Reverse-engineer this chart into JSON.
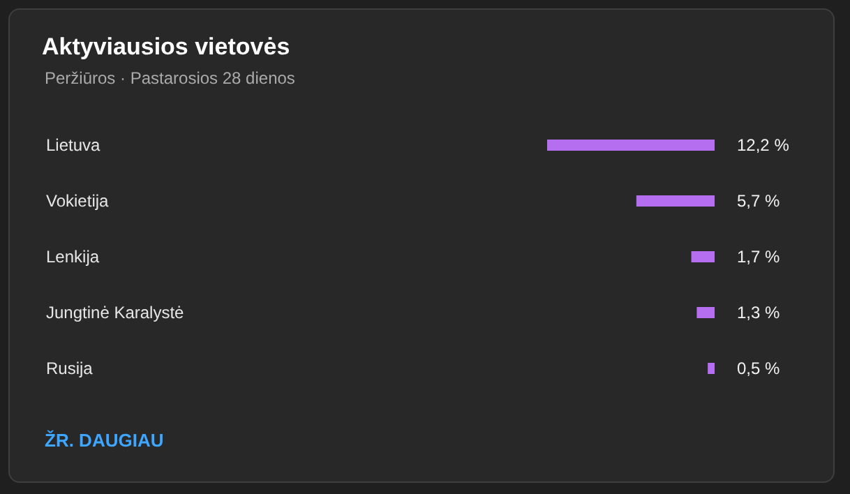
{
  "chart_data": {
    "type": "bar",
    "orientation": "horizontal",
    "title": "Aktyviausios vietovės",
    "subtitle": "Peržiūros · Pastarosios 28 dienos",
    "categories": [
      "Lietuva",
      "Vokietija",
      "Lenkija",
      "Jungtinė Karalystė",
      "Rusija"
    ],
    "values": [
      12.2,
      5.7,
      1.7,
      1.3,
      0.5
    ],
    "value_labels": [
      "12,2 %",
      "5,7 %",
      "1,7 %",
      "1,3 %",
      "0,5 %"
    ],
    "color": "#b56ef0",
    "tick_labels": "y",
    "annotations": [
      "ŽR. DAUGIAU"
    ]
  }
}
